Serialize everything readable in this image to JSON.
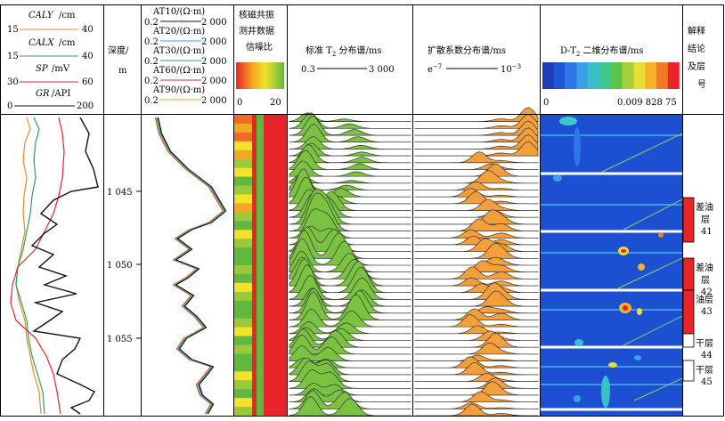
{
  "header": {
    "track1": {
      "curves": [
        {
          "name": "CALY",
          "unit": "/cm",
          "min": "15",
          "max": "40",
          "color": "#e58a2e"
        },
        {
          "name": "CALX",
          "unit": "/cm",
          "min": "15",
          "max": "40",
          "color": "#2ea05a"
        },
        {
          "name": "SP",
          "unit": "/mV",
          "min": "30",
          "max": "60",
          "color": "#e0262a"
        },
        {
          "name": "GR",
          "unit": "/API",
          "min": "0",
          "max": "200",
          "color": "#111111"
        }
      ]
    },
    "depth": {
      "label1": "深度/",
      "label2": "m"
    },
    "track2": {
      "curves": [
        {
          "name": "AT10",
          "unit": "/(Ω·m)",
          "min": "0.2",
          "max": "2 000",
          "color": "#111111"
        },
        {
          "name": "AT20",
          "unit": "/(Ω·m)",
          "min": "0.2",
          "max": "2 000",
          "color": "#3aa0e0"
        },
        {
          "name": "AT30",
          "unit": "/(Ω·m)",
          "min": "0.2",
          "max": "2 000",
          "color": "#2ea05a"
        },
        {
          "name": "AT60",
          "unit": "/(Ω·m)",
          "min": "0.2",
          "max": "2 000",
          "color": "#e0262a"
        },
        {
          "name": "AT90",
          "unit": "/(Ω·m)",
          "min": "0.2",
          "max": "2 000",
          "color": "#f0a030"
        }
      ]
    },
    "snr": {
      "l1": "核磁共振",
      "l2": "测井数据",
      "l3": "信噪比",
      "min": "0",
      "max": "20"
    },
    "t2": {
      "label": "标准 T",
      "sub": "2",
      "label_tail": " 分布谱/ms",
      "min": "0.3",
      "max": "3 000"
    },
    "diff": {
      "label": "扩散系数分布谱/ms",
      "min_base": "e",
      "min_exp": "−7",
      "max_base": "10",
      "max_exp": "−3"
    },
    "dt2": {
      "label_it": "D-T",
      "sub": "2",
      "label_tail": " 二维分布谱/ms",
      "min": "0",
      "max": "0.009 828 75"
    },
    "interp": {
      "l1": "解释",
      "l2": "结论",
      "l3": "及层",
      "l4": "号"
    }
  },
  "depth_ticks": [
    "1 045",
    "1 050",
    "1 055"
  ],
  "layers": [
    {
      "name": "差油",
      "name2": "层",
      "num": "41",
      "color": "#e8242a"
    },
    {
      "name": "差油",
      "name2": "层",
      "num": "42",
      "color": "#e8242a"
    },
    {
      "name": "油层",
      "name2": "",
      "num": "43",
      "color": "#e8242a"
    },
    {
      "name": "干层",
      "name2": "",
      "num": "44",
      "color": "#ffffff"
    },
    {
      "name": "干层",
      "name2": "",
      "num": "45",
      "color": "#ffffff"
    }
  ],
  "colors": {
    "t2_fill": "#7cc242",
    "diff_fill": "#f3a03c",
    "dt2_bg": "#1c4fd1",
    "dt2_line": "#4fc3f7",
    "oil": "#e8242a"
  }
}
